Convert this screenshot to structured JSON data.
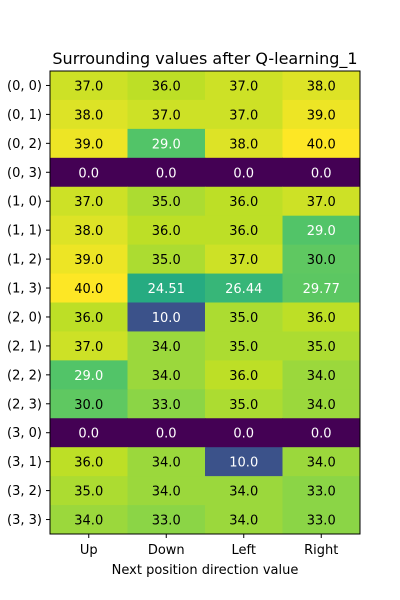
{
  "chart_data": {
    "type": "heatmap",
    "title": "Surrounding values after Q-learning_1",
    "xlabel": "Next position direction value",
    "ylabel": "",
    "columns": [
      "Up",
      "Down",
      "Left",
      "Right"
    ],
    "rows": [
      "(0, 0)",
      "(0, 1)",
      "(0, 2)",
      "(0, 3)",
      "(1, 0)",
      "(1, 1)",
      "(1, 2)",
      "(1, 3)",
      "(2, 0)",
      "(2, 1)",
      "(2, 2)",
      "(2, 3)",
      "(3, 0)",
      "(3, 1)",
      "(3, 2)",
      "(3, 3)"
    ],
    "values": [
      [
        37.0,
        36.0,
        37.0,
        38.0
      ],
      [
        38.0,
        37.0,
        37.0,
        39.0
      ],
      [
        39.0,
        29.0,
        38.0,
        40.0
      ],
      [
        0.0,
        0.0,
        0.0,
        0.0
      ],
      [
        37.0,
        35.0,
        36.0,
        37.0
      ],
      [
        38.0,
        36.0,
        36.0,
        29.0
      ],
      [
        39.0,
        35.0,
        37.0,
        30.0
      ],
      [
        40.0,
        24.51,
        26.44,
        29.77
      ],
      [
        36.0,
        10.0,
        35.0,
        36.0
      ],
      [
        37.0,
        34.0,
        35.0,
        35.0
      ],
      [
        29.0,
        34.0,
        36.0,
        34.0
      ],
      [
        30.0,
        33.0,
        35.0,
        34.0
      ],
      [
        0.0,
        0.0,
        0.0,
        0.0
      ],
      [
        36.0,
        34.0,
        10.0,
        34.0
      ],
      [
        35.0,
        34.0,
        34.0,
        33.0
      ],
      [
        34.0,
        33.0,
        34.0,
        33.0
      ]
    ],
    "labels": [
      [
        "37.0",
        "36.0",
        "37.0",
        "38.0"
      ],
      [
        "38.0",
        "37.0",
        "37.0",
        "39.0"
      ],
      [
        "39.0",
        "29.0",
        "38.0",
        "40.0"
      ],
      [
        "0.0",
        "0.0",
        "0.0",
        "0.0"
      ],
      [
        "37.0",
        "35.0",
        "36.0",
        "37.0"
      ],
      [
        "38.0",
        "36.0",
        "36.0",
        "29.0"
      ],
      [
        "39.0",
        "35.0",
        "37.0",
        "30.0"
      ],
      [
        "40.0",
        "24.51",
        "26.44",
        "29.77"
      ],
      [
        "36.0",
        "10.0",
        "35.0",
        "36.0"
      ],
      [
        "37.0",
        "34.0",
        "35.0",
        "35.0"
      ],
      [
        "29.0",
        "34.0",
        "36.0",
        "34.0"
      ],
      [
        "30.0",
        "33.0",
        "35.0",
        "34.0"
      ],
      [
        "0.0",
        "0.0",
        "0.0",
        "0.0"
      ],
      [
        "36.0",
        "34.0",
        "10.0",
        "34.0"
      ],
      [
        "35.0",
        "34.0",
        "34.0",
        "33.0"
      ],
      [
        "34.0",
        "33.0",
        "34.0",
        "33.0"
      ]
    ],
    "vmin": 0,
    "vmax": 40,
    "colormap": "viridis",
    "grid": false
  }
}
